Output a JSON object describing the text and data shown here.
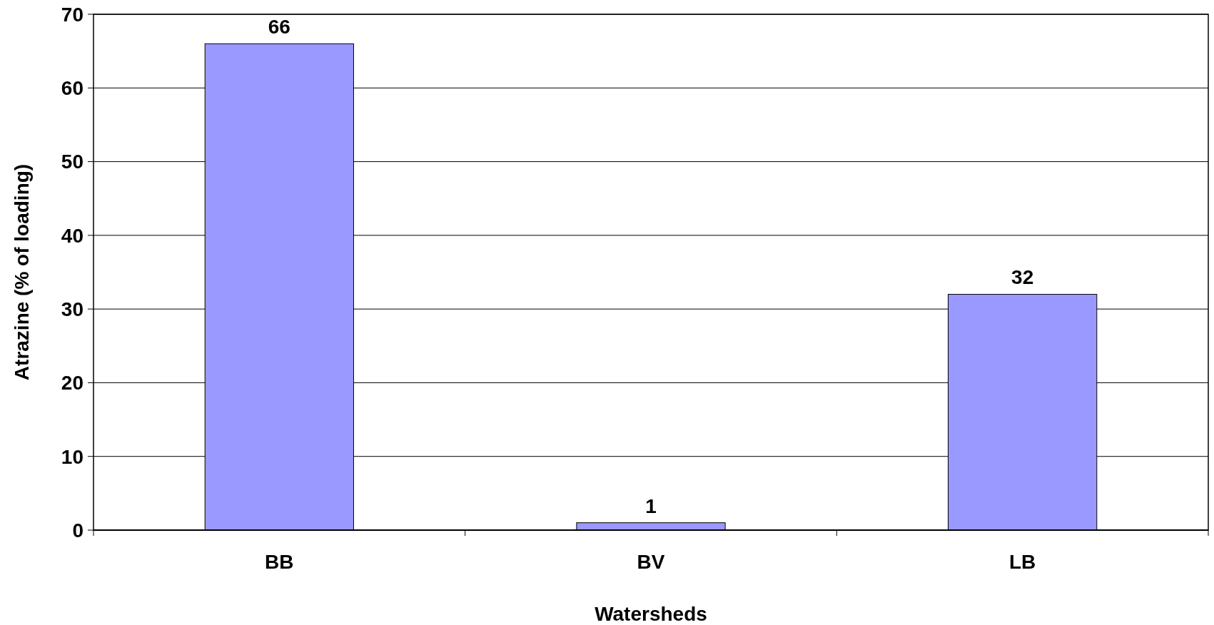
{
  "chart_data": {
    "type": "bar",
    "xlabel": "Watersheds",
    "ylabel": "Atrazine (% of loading)",
    "categories": [
      "BB",
      "BV",
      "LB"
    ],
    "values": [
      66,
      1,
      32
    ],
    "color": "#9999ff",
    "ylim": [
      0,
      70
    ],
    "yticks": [
      0,
      10,
      20,
      30,
      40,
      50,
      60,
      70
    ],
    "grid": "y",
    "data_labels": true
  }
}
